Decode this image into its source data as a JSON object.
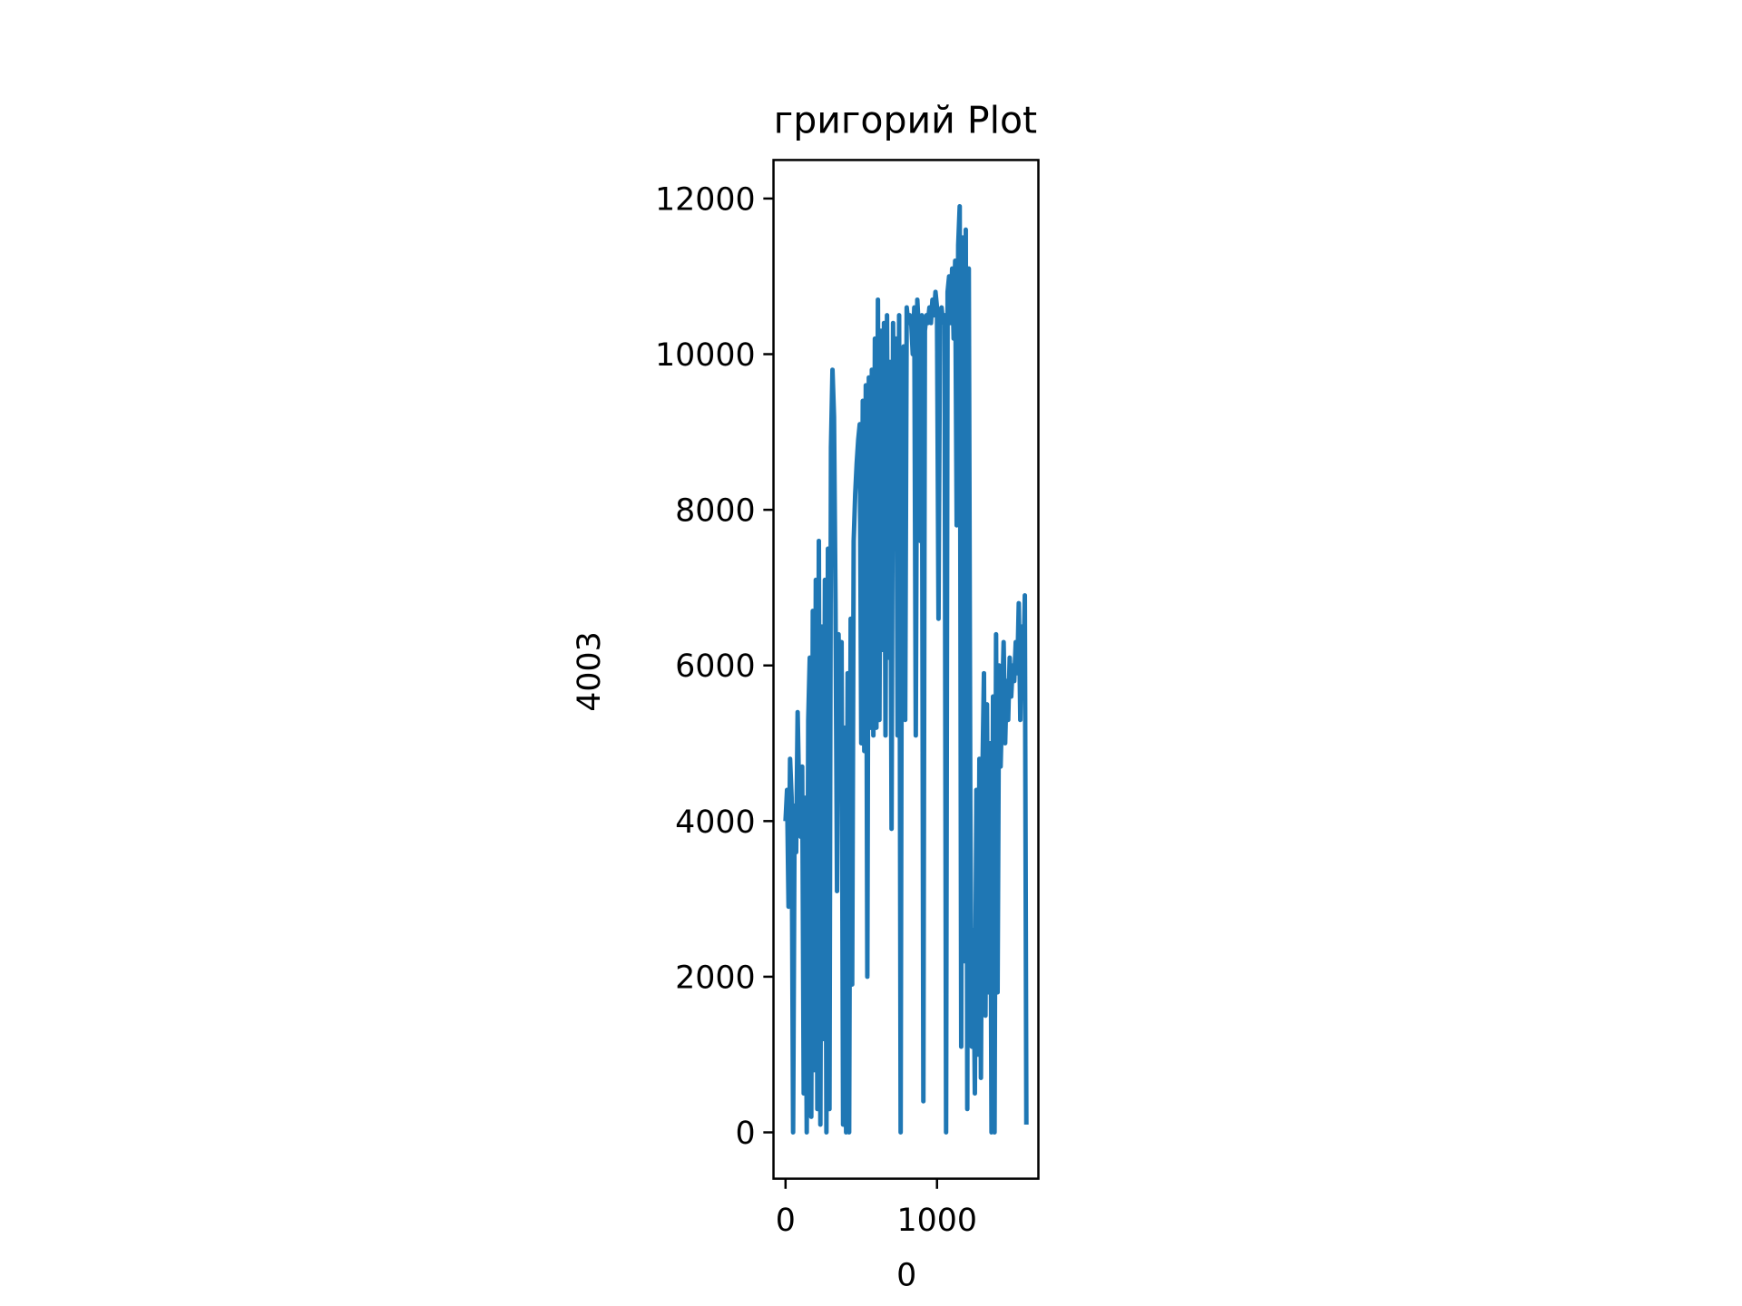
{
  "chart_data": {
    "type": "line",
    "title": "григорий Plot",
    "x_label": "0",
    "y_label": "4003",
    "x": [
      0,
      10,
      20,
      30,
      40,
      50,
      60,
      70,
      80,
      90,
      100,
      110,
      120,
      130,
      140,
      150,
      160,
      170,
      180,
      190,
      200,
      210,
      220,
      230,
      240,
      250,
      260,
      270,
      280,
      290,
      300,
      310,
      320,
      330,
      340,
      350,
      360,
      370,
      380,
      390,
      400,
      410,
      420,
      430,
      440,
      450,
      460,
      470,
      480,
      490,
      500,
      510,
      520,
      530,
      540,
      550,
      560,
      570,
      580,
      590,
      600,
      610,
      620,
      630,
      640,
      650,
      660,
      670,
      680,
      690,
      700,
      710,
      720,
      730,
      740,
      750,
      760,
      770,
      780,
      790,
      800,
      810,
      820,
      830,
      840,
      850,
      860,
      870,
      880,
      890,
      900,
      910,
      920,
      930,
      940,
      950,
      960,
      970,
      980,
      990,
      1000,
      1010,
      1020,
      1030,
      1040,
      1050,
      1060,
      1070,
      1080,
      1090,
      1100,
      1110,
      1120,
      1130,
      1140,
      1150,
      1160,
      1170,
      1180,
      1190,
      1200,
      1210,
      1220,
      1230,
      1240,
      1250,
      1260,
      1270,
      1280,
      1290,
      1300,
      1310,
      1320,
      1330,
      1340,
      1350,
      1360,
      1370,
      1380,
      1390,
      1400,
      1410,
      1420,
      1430,
      1440,
      1450,
      1460,
      1470,
      1480,
      1490,
      1500,
      1510,
      1520,
      1530,
      1540,
      1550,
      1560,
      1570,
      1580,
      1590
    ],
    "series": [
      {
        "name": "4003",
        "color": "#1f77b4",
        "values": [
          4000,
          4400,
          2900,
          4800,
          4300,
          0,
          4200,
          3600,
          5400,
          4300,
          3800,
          4700,
          500,
          4300,
          0,
          5300,
          6100,
          200,
          6700,
          800,
          7100,
          300,
          7600,
          100,
          6500,
          1200,
          7100,
          0,
          7500,
          300,
          8800,
          9800,
          9200,
          6800,
          3100,
          6400,
          4900,
          6300,
          100,
          5200,
          0,
          5900,
          0,
          6600,
          1900,
          7600,
          8200,
          8600,
          8900,
          9100,
          5000,
          9400,
          4900,
          9600,
          2000,
          9700,
          5200,
          9800,
          5100,
          10200,
          5200,
          10700,
          5300,
          10300,
          6200,
          10400,
          5100,
          10500,
          6100,
          9900,
          3900,
          10400,
          7600,
          10200,
          5100,
          10500,
          0,
          9600,
          10100,
          5300,
          10600,
          10400,
          10500,
          10400,
          10000,
          10600,
          5100,
          10700,
          10300,
          7600,
          10500,
          400,
          10300,
          10500,
          10400,
          10600,
          10400,
          10700,
          10500,
          10800,
          10600,
          6600,
          10500,
          10600,
          10400,
          10500,
          0,
          10800,
          11000,
          10400,
          11100,
          10200,
          11200,
          7800,
          11400,
          11900,
          1100,
          11500,
          2200,
          11600,
          300,
          11100,
          4200,
          1100,
          2600,
          500,
          4400,
          1000,
          4800,
          700,
          4600,
          5900,
          1500,
          5500,
          1800,
          5000,
          0,
          5600,
          0,
          6400,
          1800,
          6000,
          4700,
          5500,
          6300,
          5000,
          5800,
          5300,
          6100,
          5600,
          6000,
          5800,
          6300,
          5900,
          6800,
          5300,
          6500,
          5900,
          6900,
          100
        ]
      }
    ],
    "xlim": [
      -79.5,
      1669.5
    ],
    "ylim": [
      -595,
      12495
    ],
    "xticks": [
      0,
      1000
    ],
    "yticks": [
      0,
      2000,
      4000,
      6000,
      8000,
      10000,
      12000
    ]
  }
}
